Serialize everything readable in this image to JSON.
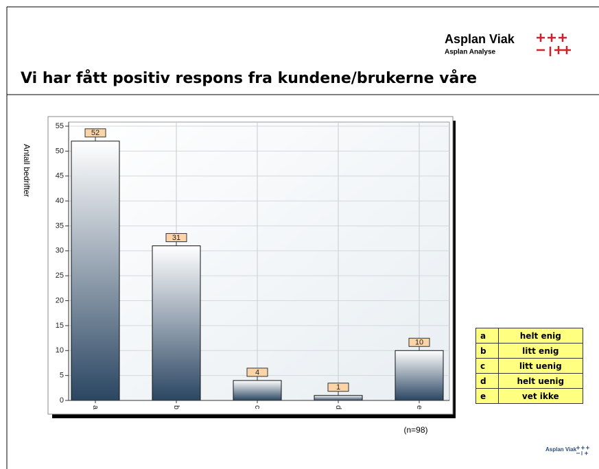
{
  "header": {
    "title": "Vi har fått positiv respons fra kundene/brukerne våre",
    "logo_name": "Asplan Viak",
    "logo_sub": "Asplan  Analyse"
  },
  "chart_data": {
    "type": "bar",
    "ylabel": "Antall bedrifter",
    "note": "(n=98)",
    "categories": [
      "a",
      "b",
      "c",
      "d",
      "e"
    ],
    "values": [
      52,
      31,
      4,
      1,
      10
    ],
    "ylim": [
      0,
      55
    ],
    "yticks": [
      0,
      5,
      10,
      15,
      20,
      25,
      30,
      35,
      40,
      45,
      50,
      55
    ],
    "grid": true
  },
  "legend_table": [
    [
      "a",
      "helt enig"
    ],
    [
      "b",
      "litt enig"
    ],
    [
      "c",
      "litt uenig"
    ],
    [
      "d",
      "helt uenig"
    ],
    [
      "e",
      "vet ikke"
    ]
  ]
}
